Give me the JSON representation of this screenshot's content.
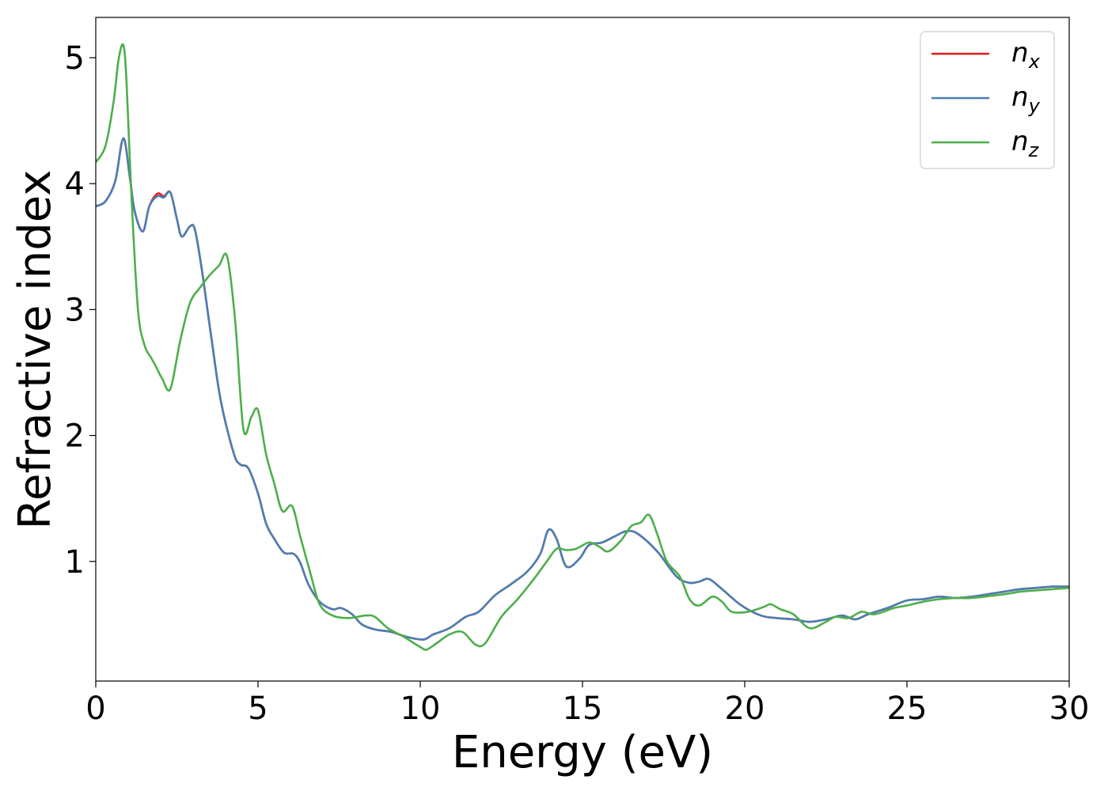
{
  "chart_data": {
    "type": "line",
    "title": "",
    "xlabel": "Energy (eV)",
    "ylabel": "Refractive index",
    "xlim": [
      0,
      30
    ],
    "ylim": [
      0.05,
      5.32
    ],
    "xticks": [
      0,
      5,
      10,
      15,
      20,
      25,
      30
    ],
    "yticks": [
      1,
      2,
      3,
      4,
      5
    ],
    "grid": false,
    "legend_position": "top-right",
    "series": [
      {
        "name": "n_x",
        "legend_base": "n",
        "legend_sub": "x",
        "color": "#e41a1c",
        "x": [
          0,
          0.3,
          0.6,
          0.85,
          1.05,
          1.2,
          1.45,
          1.65,
          1.9,
          2.1,
          2.3,
          2.5,
          2.65,
          2.9,
          3.05,
          3.25,
          3.55,
          3.85,
          4.25,
          4.45,
          4.7,
          5.0,
          5.25,
          5.5,
          5.8,
          6.1,
          6.3,
          6.55,
          6.9,
          7.3,
          7.55,
          7.9,
          8.2,
          8.6,
          9.1,
          9.6,
          10.1,
          10.4,
          10.9,
          11.4,
          11.8,
          12.3,
          12.8,
          13.3,
          13.7,
          13.95,
          14.2,
          14.5,
          14.9,
          15.2,
          15.6,
          16.0,
          16.35,
          16.7,
          17.3,
          17.9,
          18.3,
          18.6,
          18.9,
          19.3,
          19.9,
          20.5,
          21.0,
          21.5,
          22.0,
          22.5,
          23.0,
          23.4,
          23.8,
          24.4,
          25.0,
          25.5,
          26.0,
          26.5,
          27.0,
          27.5,
          28.0,
          28.5,
          29.0,
          29.5,
          30.0
        ],
        "y": [
          3.82,
          3.86,
          4.02,
          4.36,
          4.05,
          3.78,
          3.62,
          3.82,
          3.92,
          3.9,
          3.93,
          3.72,
          3.58,
          3.66,
          3.64,
          3.35,
          2.8,
          2.28,
          1.86,
          1.77,
          1.74,
          1.54,
          1.3,
          1.18,
          1.07,
          1.06,
          0.99,
          0.82,
          0.68,
          0.62,
          0.63,
          0.58,
          0.5,
          0.46,
          0.44,
          0.4,
          0.38,
          0.42,
          0.47,
          0.56,
          0.6,
          0.73,
          0.82,
          0.92,
          1.06,
          1.25,
          1.18,
          0.96,
          1.02,
          1.13,
          1.15,
          1.2,
          1.24,
          1.22,
          1.08,
          0.88,
          0.83,
          0.84,
          0.86,
          0.78,
          0.65,
          0.57,
          0.55,
          0.54,
          0.52,
          0.54,
          0.57,
          0.54,
          0.58,
          0.63,
          0.69,
          0.7,
          0.72,
          0.71,
          0.72,
          0.74,
          0.76,
          0.78,
          0.79,
          0.8,
          0.8
        ]
      },
      {
        "name": "n_y",
        "legend_base": "n",
        "legend_sub": "y",
        "color": "#4a7fb5",
        "x": [
          0,
          0.3,
          0.6,
          0.85,
          1.05,
          1.2,
          1.45,
          1.65,
          1.9,
          2.1,
          2.3,
          2.5,
          2.65,
          2.9,
          3.05,
          3.25,
          3.55,
          3.85,
          4.25,
          4.45,
          4.7,
          5.0,
          5.25,
          5.5,
          5.8,
          6.1,
          6.3,
          6.55,
          6.9,
          7.3,
          7.55,
          7.9,
          8.2,
          8.6,
          9.1,
          9.6,
          10.1,
          10.4,
          10.9,
          11.4,
          11.8,
          12.3,
          12.8,
          13.3,
          13.7,
          13.95,
          14.2,
          14.5,
          14.9,
          15.2,
          15.6,
          16.0,
          16.35,
          16.7,
          17.3,
          17.9,
          18.3,
          18.6,
          18.9,
          19.3,
          19.9,
          20.5,
          21.0,
          21.5,
          22.0,
          22.5,
          23.0,
          23.4,
          23.8,
          24.4,
          25.0,
          25.5,
          26.0,
          26.5,
          27.0,
          27.5,
          28.0,
          28.5,
          29.0,
          29.5,
          30.0
        ],
        "y": [
          3.82,
          3.86,
          4.02,
          4.36,
          4.05,
          3.78,
          3.62,
          3.82,
          3.9,
          3.89,
          3.93,
          3.72,
          3.58,
          3.66,
          3.64,
          3.35,
          2.8,
          2.28,
          1.86,
          1.77,
          1.74,
          1.54,
          1.3,
          1.18,
          1.07,
          1.06,
          0.99,
          0.82,
          0.68,
          0.62,
          0.63,
          0.58,
          0.5,
          0.46,
          0.44,
          0.4,
          0.38,
          0.42,
          0.47,
          0.56,
          0.6,
          0.73,
          0.82,
          0.92,
          1.06,
          1.25,
          1.18,
          0.96,
          1.02,
          1.13,
          1.15,
          1.2,
          1.24,
          1.22,
          1.08,
          0.88,
          0.83,
          0.84,
          0.86,
          0.78,
          0.65,
          0.57,
          0.55,
          0.54,
          0.52,
          0.54,
          0.57,
          0.54,
          0.58,
          0.63,
          0.69,
          0.7,
          0.72,
          0.71,
          0.72,
          0.74,
          0.76,
          0.78,
          0.79,
          0.8,
          0.8
        ]
      },
      {
        "name": "n_z",
        "legend_base": "n",
        "legend_sub": "z",
        "color": "#4daf4a",
        "x": [
          0,
          0.3,
          0.55,
          0.7,
          0.85,
          0.95,
          1.1,
          1.3,
          1.5,
          1.7,
          1.85,
          2.05,
          2.3,
          2.6,
          2.9,
          3.2,
          3.5,
          3.8,
          4.05,
          4.3,
          4.55,
          4.8,
          5.0,
          5.25,
          5.5,
          5.75,
          6.05,
          6.3,
          6.6,
          6.9,
          7.3,
          7.8,
          8.3,
          8.6,
          9.0,
          9.5,
          10.0,
          10.2,
          10.5,
          10.9,
          11.3,
          11.7,
          12.0,
          12.5,
          13.0,
          13.5,
          13.9,
          14.2,
          14.5,
          14.8,
          15.2,
          15.5,
          15.8,
          16.2,
          16.5,
          16.8,
          17.05,
          17.3,
          17.6,
          18.0,
          18.3,
          18.6,
          19.0,
          19.3,
          19.6,
          20.1,
          20.6,
          20.8,
          21.1,
          21.5,
          22.0,
          22.5,
          22.8,
          23.2,
          23.6,
          24.0,
          24.6,
          25.0,
          25.5,
          26.0,
          26.5,
          27.0,
          28.0,
          28.5,
          29.0,
          29.5,
          30.0
        ],
        "y": [
          4.17,
          4.3,
          4.65,
          4.98,
          5.1,
          4.8,
          3.9,
          3.0,
          2.72,
          2.62,
          2.55,
          2.45,
          2.37,
          2.75,
          3.05,
          3.17,
          3.27,
          3.35,
          3.42,
          2.9,
          2.05,
          2.15,
          2.2,
          1.85,
          1.62,
          1.4,
          1.44,
          1.2,
          0.92,
          0.66,
          0.57,
          0.55,
          0.57,
          0.56,
          0.47,
          0.4,
          0.32,
          0.3,
          0.35,
          0.42,
          0.44,
          0.34,
          0.35,
          0.56,
          0.7,
          0.86,
          1.0,
          1.1,
          1.09,
          1.1,
          1.15,
          1.12,
          1.08,
          1.17,
          1.28,
          1.31,
          1.37,
          1.22,
          1.0,
          0.88,
          0.7,
          0.65,
          0.72,
          0.68,
          0.6,
          0.6,
          0.64,
          0.66,
          0.62,
          0.58,
          0.47,
          0.52,
          0.56,
          0.55,
          0.6,
          0.58,
          0.63,
          0.65,
          0.68,
          0.7,
          0.71,
          0.71,
          0.74,
          0.76,
          0.77,
          0.78,
          0.79
        ]
      }
    ]
  }
}
